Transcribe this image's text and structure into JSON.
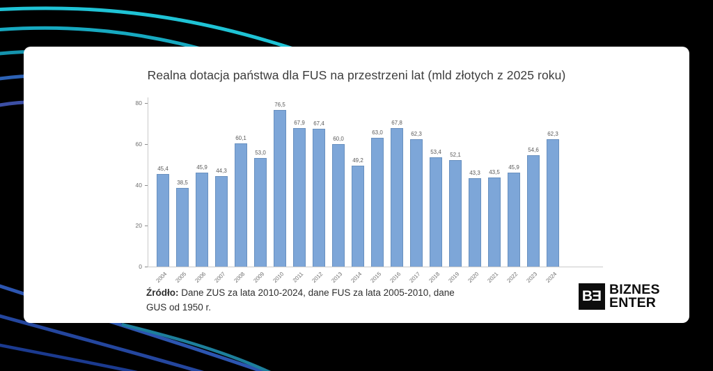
{
  "page": {
    "background_color": "#000000",
    "card_color": "#ffffff",
    "accent_teal": "#1db4c6",
    "accent_blue": "#2b55ae"
  },
  "chart_data": {
    "type": "bar",
    "title": "Realna dotacja państwa dla FUS na przestrzeni lat (mld złotych z 2025 roku)",
    "categories": [
      "2004",
      "2005",
      "2006",
      "2007",
      "2008",
      "2009",
      "2010",
      "2011",
      "2012",
      "2013",
      "2014",
      "2015",
      "2016",
      "2017",
      "2018",
      "2019",
      "2020",
      "2021",
      "2022",
      "2023",
      "2024"
    ],
    "values": [
      45.4,
      38.5,
      45.9,
      44.3,
      60.1,
      53.0,
      76.5,
      67.9,
      67.4,
      60.0,
      49.2,
      63.0,
      67.8,
      62.3,
      53.4,
      52.1,
      43.3,
      43.5,
      45.9,
      54.6,
      62.3
    ],
    "value_labels": [
      "45,4",
      "38,5",
      "45,9",
      "44,3",
      "60,1",
      "53,0",
      "76,5",
      "67,9",
      "67,4",
      "60,0",
      "49,2",
      "63,0",
      "67,8",
      "62,3",
      "53,4",
      "52,1",
      "43,3",
      "43,5",
      "45,9",
      "54,6",
      "62,3"
    ],
    "xlabel": "",
    "ylabel": "",
    "ylim": [
      0,
      80
    ],
    "yticks": [
      "0",
      "20",
      "40",
      "60",
      "80"
    ],
    "grid": false,
    "legend": null,
    "bar_color": "#7da6d8",
    "bar_border_color": "#6890bf"
  },
  "source_note": {
    "label": "Źródło:",
    "text": " Dane ZUS za lata 2010-2024, dane FUS za lata 2005-2010, dane GUS od 1950 r."
  },
  "logo": {
    "monogram_b": "B",
    "monogram_e": "E",
    "line1": "BIZNES",
    "line2": "ENTER"
  }
}
